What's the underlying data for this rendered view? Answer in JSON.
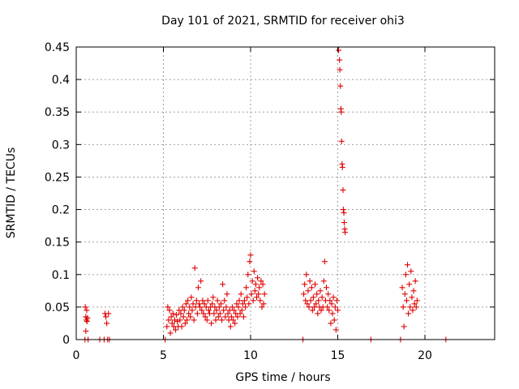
{
  "chart_data": {
    "type": "scatter",
    "title": "Day 101 of 2021, SRMTID for receiver ohi3",
    "xlabel": "GPS time / hours",
    "ylabel": "SRMTID / TECUs",
    "xlim": [
      0,
      24
    ],
    "ylim": [
      0,
      0.45
    ],
    "xticks": [
      0,
      5,
      10,
      15,
      20
    ],
    "xtick_labels": [
      "0",
      "5",
      "10",
      "15",
      "20"
    ],
    "yticks": [
      0,
      0.05,
      0.1,
      0.15,
      0.2,
      0.25,
      0.3,
      0.35,
      0.4,
      0.45
    ],
    "ytick_labels": [
      "0",
      "0.05",
      "0.1",
      "0.15",
      "0.2",
      "0.25",
      "0.3",
      "0.35",
      "0.4",
      "0.45"
    ],
    "grid": true,
    "marker": "+",
    "color": "#e00000",
    "series": [
      {
        "name": "SRMTID ohi3",
        "points": [
          [
            0.5,
            0.0
          ],
          [
            0.52,
            0.05
          ],
          [
            0.55,
            0.035
          ],
          [
            0.58,
            0.03
          ],
          [
            0.6,
            0.045
          ],
          [
            0.62,
            0.028
          ],
          [
            0.55,
            0.013
          ],
          [
            0.65,
            0.033
          ],
          [
            0.68,
            0.0
          ],
          [
            1.35,
            0.0
          ],
          [
            1.6,
            0.0
          ],
          [
            1.65,
            0.04
          ],
          [
            1.7,
            0.035
          ],
          [
            1.75,
            0.025
          ],
          [
            1.8,
            0.0
          ],
          [
            1.85,
            0.04
          ],
          [
            1.9,
            0.0
          ],
          [
            5.1,
            0.0
          ],
          [
            5.2,
            0.02
          ],
          [
            5.25,
            0.05
          ],
          [
            5.3,
            0.03
          ],
          [
            5.35,
            0.045
          ],
          [
            5.4,
            0.01
          ],
          [
            5.45,
            0.035
          ],
          [
            5.5,
            0.025
          ],
          [
            5.55,
            0.04
          ],
          [
            5.6,
            0.02
          ],
          [
            5.65,
            0.03
          ],
          [
            5.7,
            0.015
          ],
          [
            5.75,
            0.038
          ],
          [
            5.8,
            0.028
          ],
          [
            5.85,
            0.02
          ],
          [
            5.9,
            0.045
          ],
          [
            5.95,
            0.03
          ],
          [
            6.0,
            0.04
          ],
          [
            6.05,
            0.02
          ],
          [
            6.1,
            0.05
          ],
          [
            6.15,
            0.035
          ],
          [
            6.2,
            0.045
          ],
          [
            6.25,
            0.025
          ],
          [
            6.3,
            0.055
          ],
          [
            6.35,
            0.03
          ],
          [
            6.4,
            0.06
          ],
          [
            6.45,
            0.04
          ],
          [
            6.5,
            0.05
          ],
          [
            6.55,
            0.035
          ],
          [
            6.6,
            0.065
          ],
          [
            6.65,
            0.045
          ],
          [
            6.7,
            0.055
          ],
          [
            6.75,
            0.03
          ],
          [
            6.8,
            0.11
          ],
          [
            6.85,
            0.05
          ],
          [
            6.9,
            0.06
          ],
          [
            6.95,
            0.04
          ],
          [
            7.0,
            0.08
          ],
          [
            7.05,
            0.055
          ],
          [
            7.1,
            0.05
          ],
          [
            7.15,
            0.09
          ],
          [
            7.2,
            0.045
          ],
          [
            7.25,
            0.06
          ],
          [
            7.3,
            0.04
          ],
          [
            7.35,
            0.055
          ],
          [
            7.4,
            0.035
          ],
          [
            7.45,
            0.05
          ],
          [
            7.5,
            0.03
          ],
          [
            7.55,
            0.06
          ],
          [
            7.6,
            0.045
          ],
          [
            7.65,
            0.04
          ],
          [
            7.7,
            0.05
          ],
          [
            7.75,
            0.025
          ],
          [
            7.8,
            0.055
          ],
          [
            7.85,
            0.065
          ],
          [
            7.9,
            0.04
          ],
          [
            7.95,
            0.05
          ],
          [
            8.0,
            0.03
          ],
          [
            8.05,
            0.045
          ],
          [
            8.1,
            0.06
          ],
          [
            8.15,
            0.035
          ],
          [
            8.2,
            0.05
          ],
          [
            8.25,
            0.04
          ],
          [
            8.3,
            0.055
          ],
          [
            8.35,
            0.03
          ],
          [
            8.4,
            0.085
          ],
          [
            8.45,
            0.045
          ],
          [
            8.5,
            0.06
          ],
          [
            8.55,
            0.035
          ],
          [
            8.6,
            0.05
          ],
          [
            8.65,
            0.07
          ],
          [
            8.7,
            0.04
          ],
          [
            8.75,
            0.03
          ],
          [
            8.8,
            0.045
          ],
          [
            8.85,
            0.02
          ],
          [
            8.9,
            0.035
          ],
          [
            8.95,
            0.05
          ],
          [
            9.0,
            0.03
          ],
          [
            9.05,
            0.045
          ],
          [
            9.1,
            0.025
          ],
          [
            9.15,
            0.04
          ],
          [
            9.2,
            0.055
          ],
          [
            9.25,
            0.035
          ],
          [
            9.3,
            0.05
          ],
          [
            9.35,
            0.06
          ],
          [
            9.4,
            0.04
          ],
          [
            9.45,
            0.07
          ],
          [
            9.5,
            0.045
          ],
          [
            9.55,
            0.055
          ],
          [
            9.6,
            0.035
          ],
          [
            9.65,
            0.06
          ],
          [
            9.7,
            0.05
          ],
          [
            9.75,
            0.08
          ],
          [
            9.8,
            0.065
          ],
          [
            9.85,
            0.1
          ],
          [
            9.9,
            0.055
          ],
          [
            9.95,
            0.12
          ],
          [
            10.0,
            0.13
          ],
          [
            10.05,
            0.07
          ],
          [
            10.1,
            0.09
          ],
          [
            10.15,
            0.06
          ],
          [
            10.2,
            0.105
          ],
          [
            10.25,
            0.075
          ],
          [
            10.3,
            0.085
          ],
          [
            10.35,
            0.065
          ],
          [
            10.4,
            0.095
          ],
          [
            10.45,
            0.07
          ],
          [
            10.5,
            0.08
          ],
          [
            10.55,
            0.06
          ],
          [
            10.6,
            0.09
          ],
          [
            10.65,
            0.05
          ],
          [
            10.7,
            0.085
          ],
          [
            10.75,
            0.055
          ],
          [
            10.8,
            0.07
          ],
          [
            13.0,
            0.0
          ],
          [
            13.05,
            0.07
          ],
          [
            13.1,
            0.085
          ],
          [
            13.15,
            0.06
          ],
          [
            13.2,
            0.1
          ],
          [
            13.25,
            0.055
          ],
          [
            13.3,
            0.075
          ],
          [
            13.35,
            0.05
          ],
          [
            13.4,
            0.09
          ],
          [
            13.45,
            0.06
          ],
          [
            13.5,
            0.08
          ],
          [
            13.55,
            0.045
          ],
          [
            13.6,
            0.065
          ],
          [
            13.65,
            0.05
          ],
          [
            13.7,
            0.085
          ],
          [
            13.75,
            0.055
          ],
          [
            13.8,
            0.07
          ],
          [
            13.85,
            0.04
          ],
          [
            13.9,
            0.06
          ],
          [
            13.95,
            0.05
          ],
          [
            14.0,
            0.075
          ],
          [
            14.05,
            0.045
          ],
          [
            14.1,
            0.065
          ],
          [
            14.15,
            0.05
          ],
          [
            14.2,
            0.09
          ],
          [
            14.25,
            0.12
          ],
          [
            14.3,
            0.06
          ],
          [
            14.35,
            0.08
          ],
          [
            14.4,
            0.05
          ],
          [
            14.45,
            0.07
          ],
          [
            14.5,
            0.045
          ],
          [
            14.55,
            0.06
          ],
          [
            14.6,
            0.025
          ],
          [
            14.65,
            0.055
          ],
          [
            14.7,
            0.04
          ],
          [
            14.75,
            0.065
          ],
          [
            14.8,
            0.03
          ],
          [
            14.85,
            0.05
          ],
          [
            14.9,
            0.015
          ],
          [
            14.95,
            0.06
          ],
          [
            15.0,
            0.045
          ],
          [
            15.05,
            0.445
          ],
          [
            15.1,
            0.43
          ],
          [
            15.12,
            0.415
          ],
          [
            15.15,
            0.39
          ],
          [
            15.18,
            0.355
          ],
          [
            15.2,
            0.35
          ],
          [
            15.22,
            0.305
          ],
          [
            15.25,
            0.27
          ],
          [
            15.27,
            0.265
          ],
          [
            15.3,
            0.23
          ],
          [
            15.32,
            0.2
          ],
          [
            15.35,
            0.195
          ],
          [
            15.37,
            0.18
          ],
          [
            15.4,
            0.17
          ],
          [
            15.42,
            0.165
          ],
          [
            16.9,
            0.0
          ],
          [
            18.6,
            0.0
          ],
          [
            18.7,
            0.08
          ],
          [
            18.75,
            0.05
          ],
          [
            18.8,
            0.02
          ],
          [
            18.85,
            0.07
          ],
          [
            18.9,
            0.1
          ],
          [
            18.95,
            0.06
          ],
          [
            19.0,
            0.115
          ],
          [
            19.05,
            0.04
          ],
          [
            19.1,
            0.085
          ],
          [
            19.15,
            0.05
          ],
          [
            19.2,
            0.105
          ],
          [
            19.25,
            0.065
          ],
          [
            19.3,
            0.045
          ],
          [
            19.35,
            0.075
          ],
          [
            19.4,
            0.055
          ],
          [
            19.45,
            0.09
          ],
          [
            19.5,
            0.05
          ],
          [
            19.55,
            0.06
          ],
          [
            21.2,
            0.0
          ]
        ]
      }
    ]
  }
}
